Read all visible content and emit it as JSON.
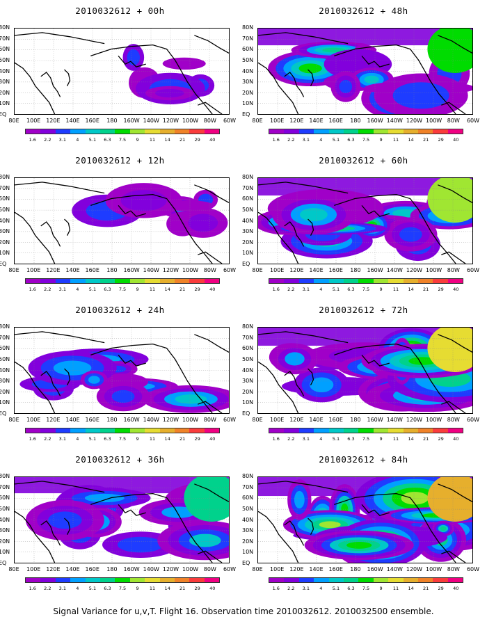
{
  "panels": [
    {
      "title": "2010032612 + 00h",
      "intensity": 0.15
    },
    {
      "title": "2010032612 + 48h",
      "intensity": 0.65
    },
    {
      "title": "2010032612 + 12h",
      "intensity": 0.3
    },
    {
      "title": "2010032612 + 60h",
      "intensity": 0.75
    },
    {
      "title": "2010032612 + 24h",
      "intensity": 0.45
    },
    {
      "title": "2010032612 + 72h",
      "intensity": 0.85
    },
    {
      "title": "2010032612 + 36h",
      "intensity": 0.55
    },
    {
      "title": "2010032612 + 84h",
      "intensity": 0.95
    }
  ],
  "lat_labels": [
    "80N",
    "70N",
    "60N",
    "50N",
    "40N",
    "30N",
    "20N",
    "10N",
    "EQ"
  ],
  "lon_labels": [
    "80E",
    "100E",
    "120E",
    "140E",
    "160E",
    "180",
    "160W",
    "140W",
    "120W",
    "100W",
    "80W",
    "60W"
  ],
  "colorbar": {
    "labels": [
      "1.6",
      "2.2",
      "3.1",
      "4",
      "5.1",
      "6.3",
      "7.5",
      "9",
      "11",
      "14",
      "21",
      "29",
      "40"
    ],
    "colors": [
      "#a000c8",
      "#8200dc",
      "#1e3cff",
      "#00a0ff",
      "#00c8c8",
      "#00d28c",
      "#00dc00",
      "#a0e632",
      "#e6dc32",
      "#e6af2d",
      "#f08228",
      "#fa3c3c",
      "#f00082"
    ]
  },
  "caption": "Signal Variance for u,v,T. Flight 16. Observation time 2010032612. 2010032500 ensemble."
}
